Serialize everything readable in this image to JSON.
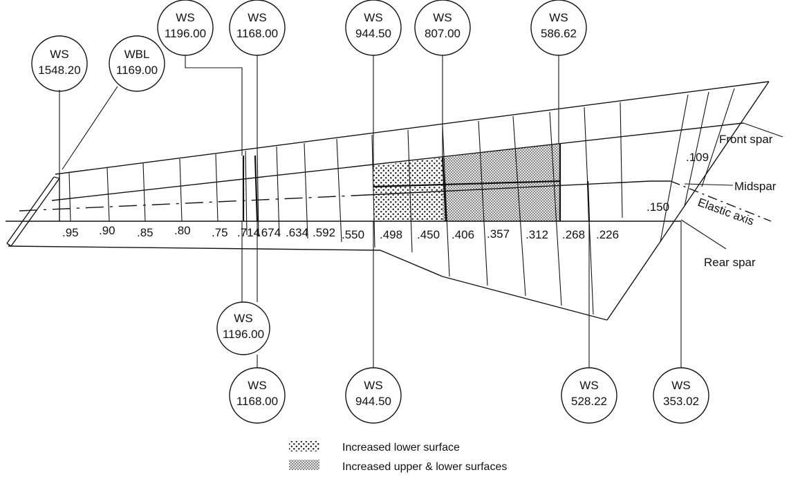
{
  "top_bubbles": [
    {
      "line1": "WS",
      "line2": "1548.20"
    },
    {
      "line1": "WBL",
      "line2": "1169.00"
    },
    {
      "line1": "WS",
      "line2": "1196.00"
    },
    {
      "line1": "WS",
      "line2": "1168.00"
    },
    {
      "line1": "WS",
      "line2": "944.50"
    },
    {
      "line1": "WS",
      "line2": "807.00"
    },
    {
      "line1": "WS",
      "line2": "586.62"
    }
  ],
  "bottom_bubbles": [
    {
      "line1": "WS",
      "line2": "1196.00"
    },
    {
      "line1": "WS",
      "line2": "1168.00"
    },
    {
      "line1": "WS",
      "line2": "944.50"
    },
    {
      "line1": "WS",
      "line2": "528.22"
    },
    {
      "line1": "WS",
      "line2": "353.02"
    }
  ],
  "station_labels": [
    ".95",
    ".90",
    ".85",
    ".80",
    ".75",
    ".714",
    ".674",
    ".634",
    ".592",
    ".550",
    ".498",
    ".450",
    ".406",
    ".357",
    ".312",
    ".268",
    ".226"
  ],
  "annotations": {
    "front_spar": "Front spar",
    "midspar": "Midspar",
    "elastic_axis": "Elastic axis",
    "rear_spar": "Rear spar",
    "v109": ".109",
    "v150": ".150"
  },
  "legend": [
    {
      "pattern": "coarse-dots",
      "label": "Increased lower surface"
    },
    {
      "pattern": "fine-dots",
      "label": "Increased upper & lower surfaces"
    }
  ]
}
